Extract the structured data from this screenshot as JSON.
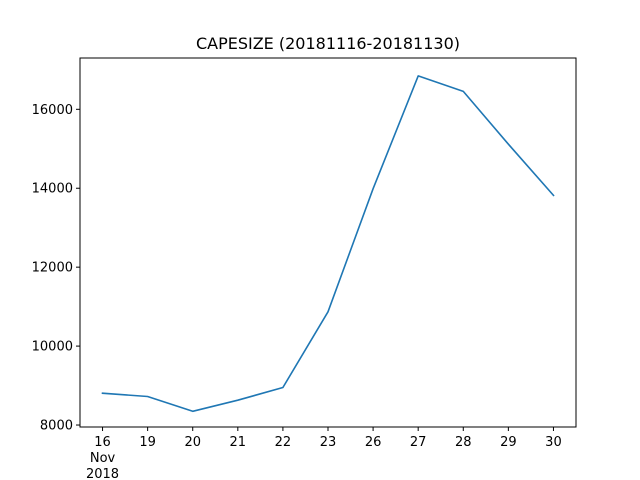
{
  "chart_data": {
    "type": "line",
    "title": "CAPESIZE (20181116-20181130)",
    "xlabel": "",
    "ylabel": "",
    "categories": [
      "16",
      "19",
      "20",
      "21",
      "22",
      "23",
      "26",
      "27",
      "28",
      "29",
      "30"
    ],
    "x_sublabel": [
      "Nov",
      "2018"
    ],
    "series": [
      {
        "values": [
          8807,
          8724,
          8348,
          8630,
          8952,
          10868,
          13987,
          16847,
          16454,
          15116,
          13818
        ]
      }
    ],
    "ylim": [
      7950,
      17300
    ],
    "yticks": [
      8000,
      10000,
      12000,
      14000,
      16000
    ],
    "line_color": "#1f77b4",
    "grid": false,
    "legend": "none"
  }
}
